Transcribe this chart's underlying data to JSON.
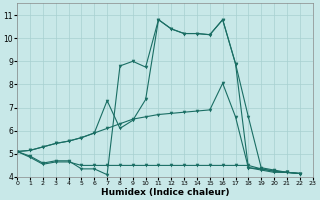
{
  "background_color": "#c8e8e8",
  "grid_color": "#a8d0d0",
  "line_color": "#1a6e64",
  "xlabel": "Humidex (Indice chaleur)",
  "xlim": [
    0,
    23
  ],
  "ylim": [
    4,
    11.5
  ],
  "yticks": [
    4,
    5,
    6,
    7,
    8,
    9,
    10,
    11
  ],
  "xticks": [
    0,
    1,
    2,
    3,
    4,
    5,
    6,
    7,
    8,
    9,
    10,
    11,
    12,
    13,
    14,
    15,
    16,
    17,
    18,
    19,
    20,
    21,
    22,
    23
  ],
  "xtick_labels": [
    "0",
    "1",
    "2",
    "3",
    "4",
    "5",
    "6",
    "7",
    "8",
    "9",
    "10",
    "11",
    "12",
    "13",
    "14",
    "15",
    "16",
    "17",
    "18",
    "19",
    "20",
    "21",
    "22",
    "23"
  ],
  "series": [
    {
      "x": [
        0,
        1,
        2,
        3,
        4,
        5,
        6,
        7,
        8,
        9,
        10,
        11,
        12,
        13,
        14,
        15,
        16,
        17,
        18,
        19,
        20,
        21,
        22
      ],
      "y": [
        5.1,
        4.9,
        4.6,
        4.7,
        4.7,
        4.35,
        4.35,
        4.1,
        8.8,
        9.0,
        8.75,
        10.8,
        10.4,
        10.2,
        10.2,
        10.15,
        10.8,
        8.9,
        4.4,
        4.3,
        4.2,
        4.2,
        4.15
      ]
    },
    {
      "x": [
        0,
        1,
        2,
        3,
        4,
        5,
        6,
        7,
        8,
        9,
        10,
        11,
        12,
        13,
        14,
        15,
        16,
        17,
        18,
        19,
        20,
        21,
        22
      ],
      "y": [
        5.1,
        4.85,
        4.55,
        4.65,
        4.65,
        4.5,
        4.5,
        4.5,
        4.5,
        4.5,
        4.5,
        4.5,
        4.5,
        4.5,
        4.5,
        4.5,
        4.5,
        4.5,
        4.5,
        4.35,
        4.25,
        4.2,
        4.15
      ]
    },
    {
      "x": [
        0,
        1,
        2,
        3,
        4,
        5,
        6,
        7,
        8,
        9,
        10,
        11,
        12,
        13,
        14,
        15,
        16,
        17,
        18,
        19,
        20,
        21,
        22
      ],
      "y": [
        5.1,
        5.15,
        5.3,
        5.45,
        5.55,
        5.7,
        5.9,
        6.1,
        6.3,
        6.5,
        6.6,
        6.7,
        6.75,
        6.8,
        6.85,
        6.9,
        8.05,
        6.6,
        4.4,
        4.35,
        4.25,
        4.2,
        4.15
      ]
    },
    {
      "x": [
        0,
        1,
        2,
        3,
        4,
        5,
        6,
        7,
        8,
        9,
        10,
        11,
        12,
        13,
        14,
        15,
        16,
        17,
        18,
        19,
        20,
        21,
        22
      ],
      "y": [
        5.1,
        5.15,
        5.3,
        5.45,
        5.55,
        5.7,
        5.9,
        7.3,
        6.1,
        6.45,
        7.35,
        10.8,
        10.4,
        10.2,
        10.2,
        10.15,
        10.8,
        8.9,
        6.6,
        4.4,
        4.3,
        4.2,
        4.15
      ]
    }
  ]
}
